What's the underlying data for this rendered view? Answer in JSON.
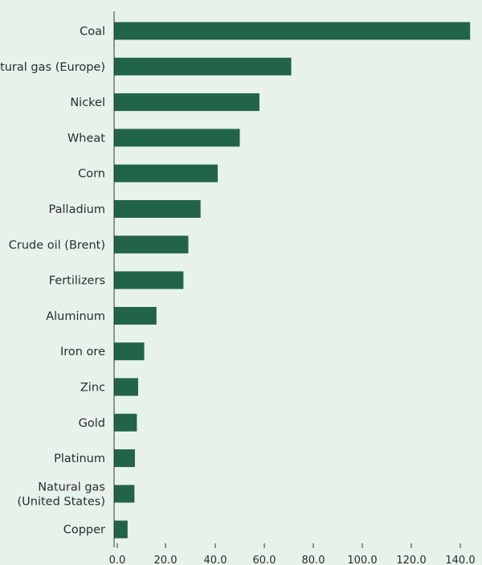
{
  "chart_data": {
    "type": "bar",
    "orientation": "horizontal",
    "categories": [
      "Coal",
      "Natural gas (Europe)",
      "Nickel",
      "Wheat",
      "Corn",
      "Palladium",
      "Crude oil (Brent)",
      "Fertilizers",
      "Aluminum",
      "Iron ore",
      "Zinc",
      "Gold",
      "Platinum",
      "Natural gas\n(United States)",
      "Copper"
    ],
    "values": [
      144,
      71,
      58,
      50,
      41,
      34,
      29,
      27,
      16,
      11,
      8.5,
      8,
      7.2,
      7,
      4.2
    ],
    "xlim": [
      0,
      140
    ],
    "x_ticks": [
      "0.0",
      "20.0",
      "40.0",
      "60.0",
      "80.0",
      "100.0",
      "120.0",
      "140.0"
    ],
    "bar_color": "#226449",
    "background_color": "#e7f3ea",
    "grid": false,
    "title": "",
    "xlabel": "",
    "ylabel": ""
  }
}
